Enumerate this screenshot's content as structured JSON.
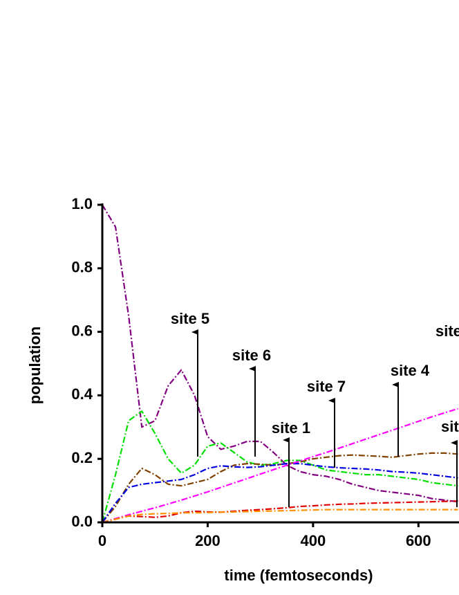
{
  "chart_data": {
    "type": "line",
    "xlabel": "time (femtoseconds)",
    "ylabel": "population",
    "x": [
      0,
      25,
      50,
      75,
      100,
      125,
      150,
      175,
      200,
      225,
      250,
      275,
      300,
      325,
      350,
      375,
      400,
      425,
      450,
      475,
      500,
      525,
      550,
      575,
      600,
      625,
      650,
      675
    ],
    "xlim": [
      0,
      677
    ],
    "xticks": [
      0,
      200,
      400,
      600
    ],
    "ylim": [
      0,
      1
    ],
    "yticks": [
      {
        "value": 0,
        "label": "0.0"
      },
      0.2,
      0.4,
      0.6,
      0.8,
      {
        "value": 1,
        "label": "1.0"
      }
    ],
    "series": [
      {
        "color": "#800080",
        "values": [
          1.0,
          0.93,
          0.65,
          0.3,
          0.32,
          0.43,
          0.48,
          0.4,
          0.27,
          0.23,
          0.24,
          0.255,
          0.255,
          0.22,
          0.18,
          0.16,
          0.15,
          0.145,
          0.135,
          0.12,
          0.11,
          0.1,
          0.095,
          0.09,
          0.085,
          0.075,
          0.07,
          0.065
        ]
      },
      {
        "color": "#00e000",
        "values": [
          0,
          0.15,
          0.32,
          0.35,
          0.28,
          0.2,
          0.155,
          0.18,
          0.24,
          0.25,
          0.22,
          0.19,
          0.18,
          0.185,
          0.195,
          0.195,
          0.18,
          0.165,
          0.16,
          0.155,
          0.15,
          0.15,
          0.145,
          0.14,
          0.135,
          0.125,
          0.12,
          0.115
        ]
      },
      {
        "color": "#804000",
        "values": [
          0,
          0.05,
          0.12,
          0.17,
          0.15,
          0.12,
          0.115,
          0.125,
          0.135,
          0.16,
          0.18,
          0.185,
          0.183,
          0.18,
          0.185,
          0.19,
          0.2,
          0.205,
          0.21,
          0.212,
          0.21,
          0.208,
          0.205,
          0.21,
          0.215,
          0.218,
          0.218,
          0.215
        ]
      },
      {
        "color": "#0000e0",
        "values": [
          0,
          0.06,
          0.11,
          0.12,
          0.125,
          0.13,
          0.135,
          0.15,
          0.17,
          0.178,
          0.175,
          0.173,
          0.175,
          0.18,
          0.185,
          0.185,
          0.18,
          0.175,
          0.172,
          0.17,
          0.168,
          0.165,
          0.16,
          0.158,
          0.155,
          0.15,
          0.145,
          0.14
        ]
      },
      {
        "color": "#ff00ff",
        "values": [
          0,
          0.012,
          0.024,
          0.035,
          0.046,
          0.058,
          0.07,
          0.083,
          0.096,
          0.11,
          0.124,
          0.138,
          0.152,
          0.166,
          0.18,
          0.193,
          0.207,
          0.22,
          0.234,
          0.248,
          0.262,
          0.276,
          0.29,
          0.304,
          0.318,
          0.332,
          0.345,
          0.358
        ]
      },
      {
        "color": "#e00000",
        "values": [
          0,
          0.01,
          0.02,
          0.018,
          0.016,
          0.02,
          0.03,
          0.035,
          0.033,
          0.032,
          0.035,
          0.038,
          0.04,
          0.043,
          0.046,
          0.05,
          0.052,
          0.055,
          0.057,
          0.058,
          0.06,
          0.061,
          0.062,
          0.063,
          0.064,
          0.065,
          0.066,
          0.067
        ]
      },
      {
        "color": "#ff9000",
        "values": [
          0,
          0.01,
          0.02,
          0.025,
          0.027,
          0.028,
          0.03,
          0.03,
          0.031,
          0.032,
          0.033,
          0.034,
          0.035,
          0.036,
          0.037,
          0.038,
          0.039,
          0.04,
          0.04,
          0.04,
          0.04,
          0.04,
          0.04,
          0.04,
          0.04,
          0.04,
          0.04,
          0.04
        ]
      }
    ],
    "annotations": [
      "site 5",
      "site 6",
      "site 1",
      "site 7",
      "site 4",
      "site",
      "sit"
    ]
  }
}
